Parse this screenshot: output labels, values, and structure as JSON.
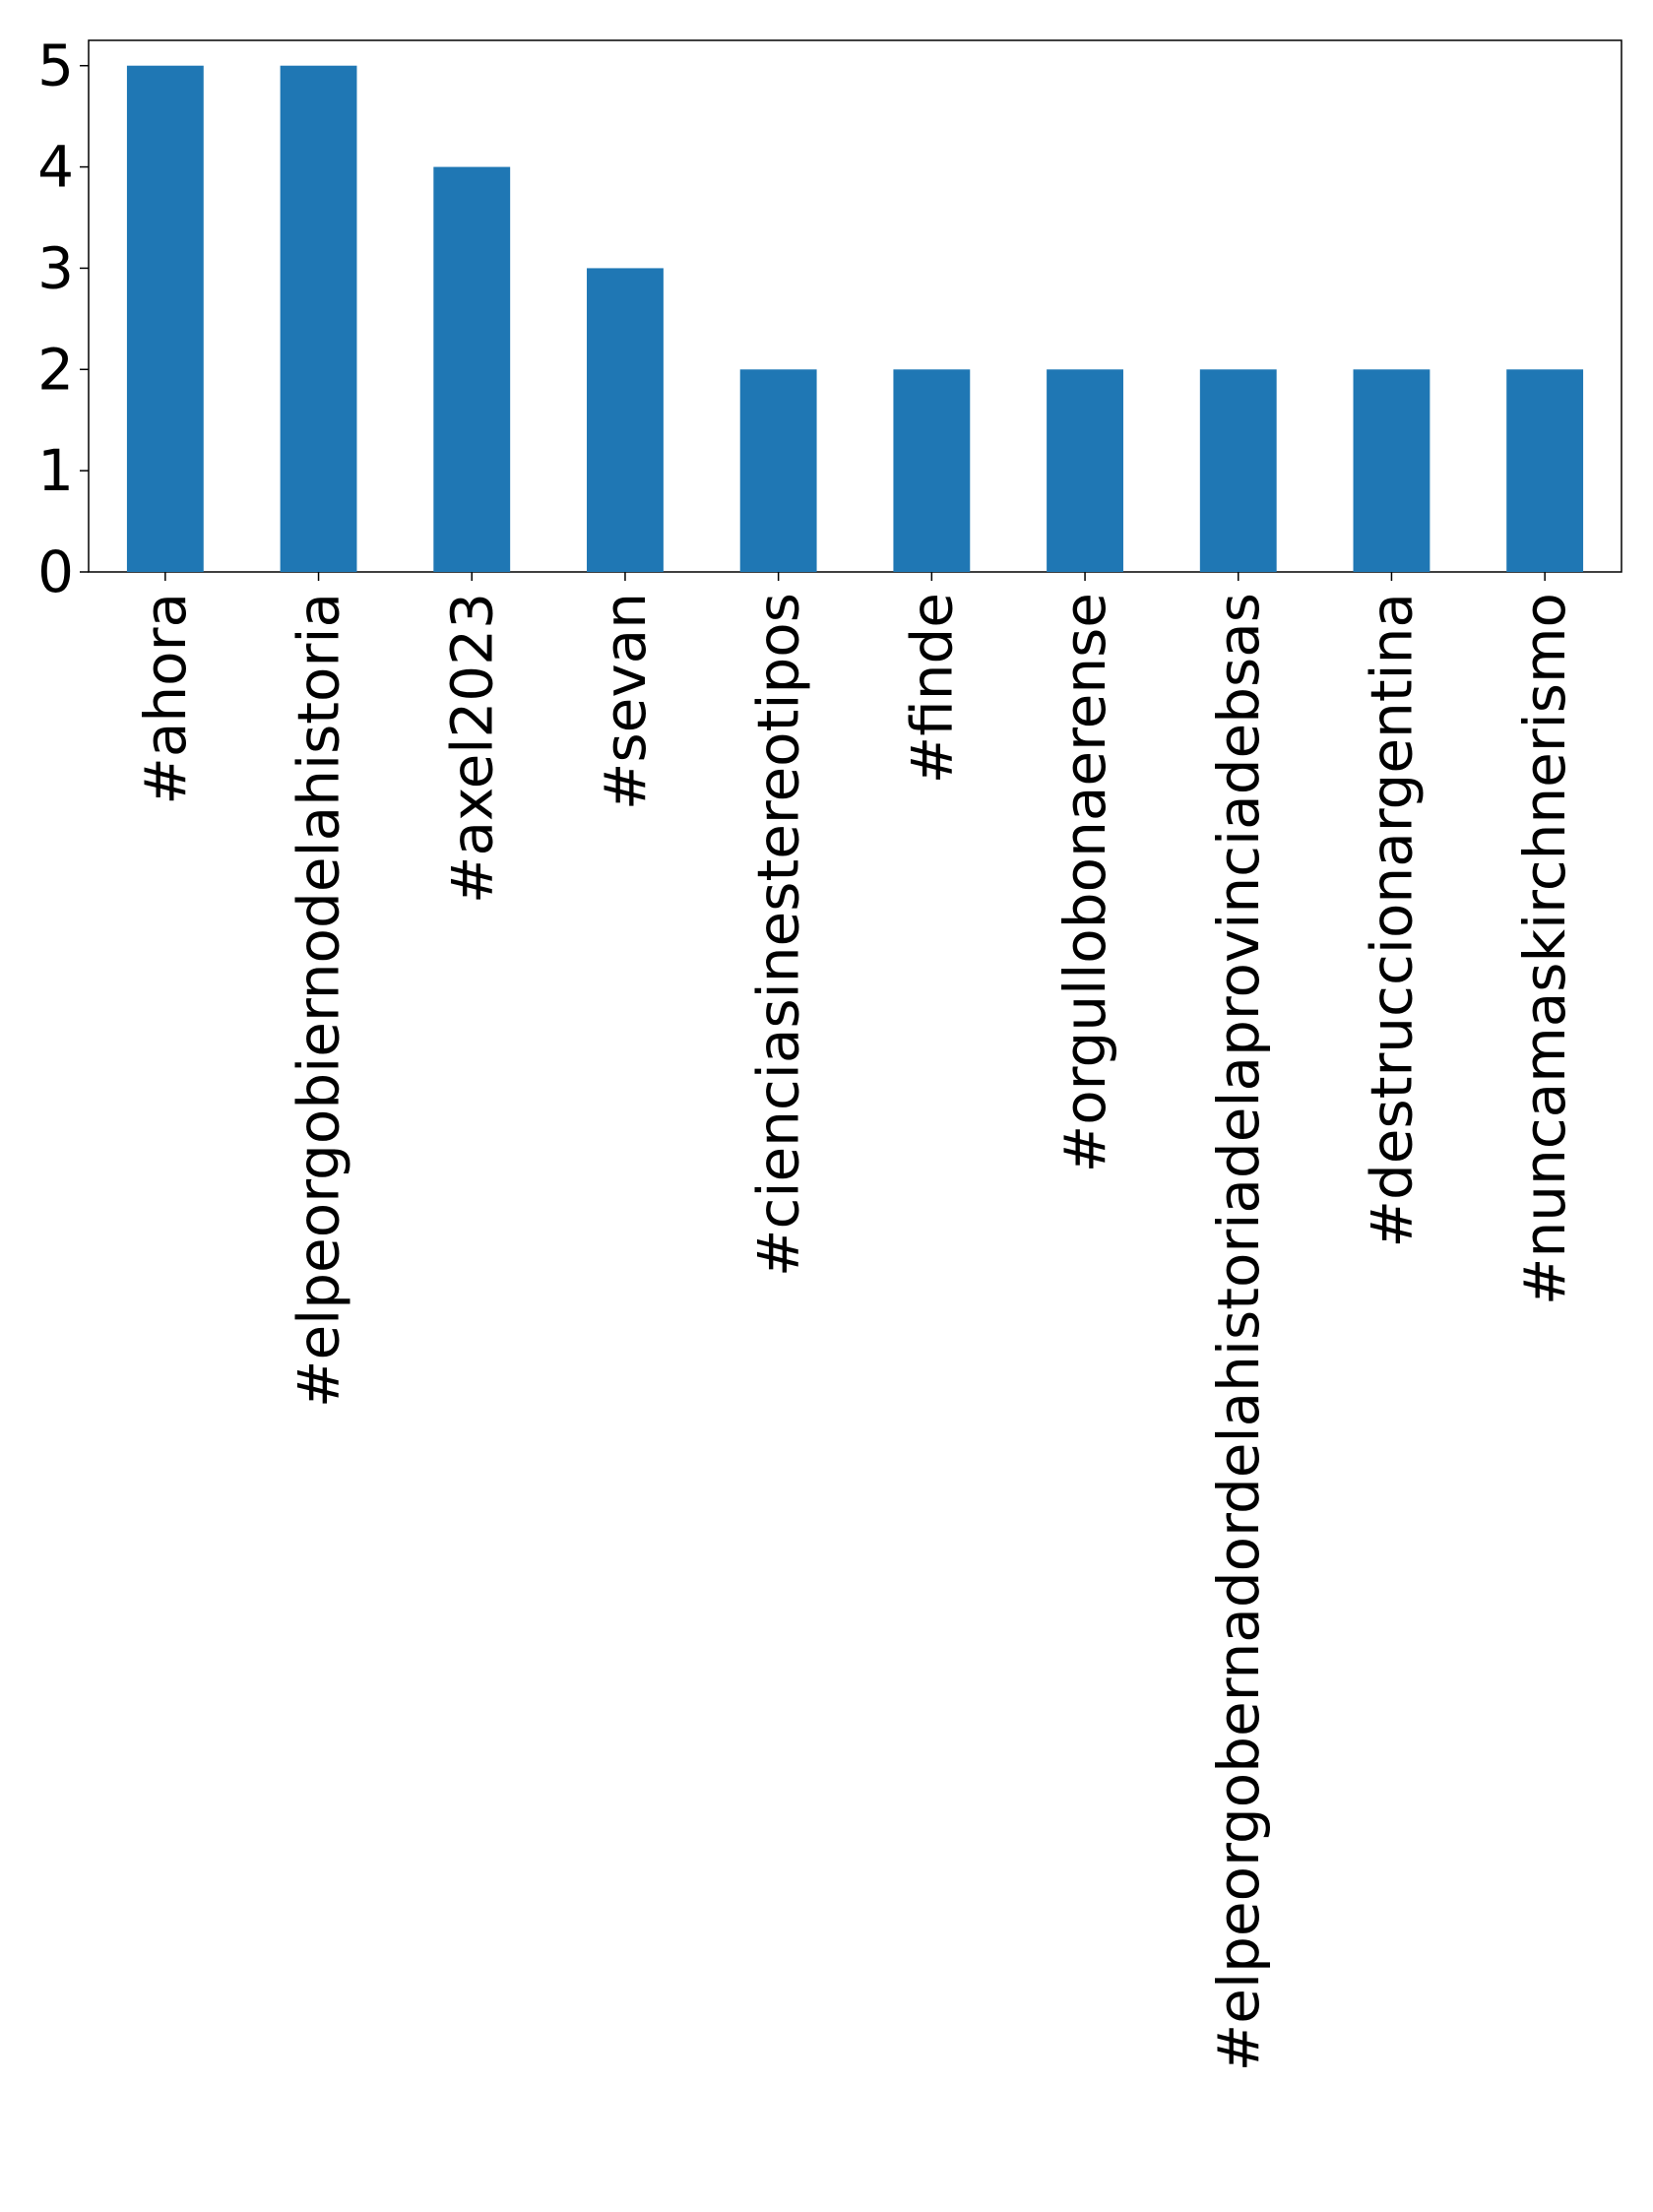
{
  "chart_data": {
    "type": "bar",
    "title": "",
    "xlabel": "",
    "ylabel": "",
    "categories": [
      "#ahora",
      "#elpeorgobiernodelahistoria",
      "#axel2023",
      "#sevan",
      "#cienciasinestereotipos",
      "#finde",
      "#orgullobonaerense",
      "#elpeorgobernadordelahistoriadelaprovinciadebsas",
      "#destruccionargentina",
      "#nuncamaskirchnerismo"
    ],
    "values": [
      5,
      5,
      4,
      3,
      2,
      2,
      2,
      2,
      2,
      2
    ],
    "ylim": [
      0,
      5.25
    ],
    "yticks": [
      0,
      1,
      2,
      3,
      4,
      5
    ],
    "ytick_labels": [
      "0",
      "1",
      "2",
      "3",
      "4",
      "5"
    ],
    "bar_color": "#1f77b4",
    "grid": false,
    "legend": "none"
  }
}
